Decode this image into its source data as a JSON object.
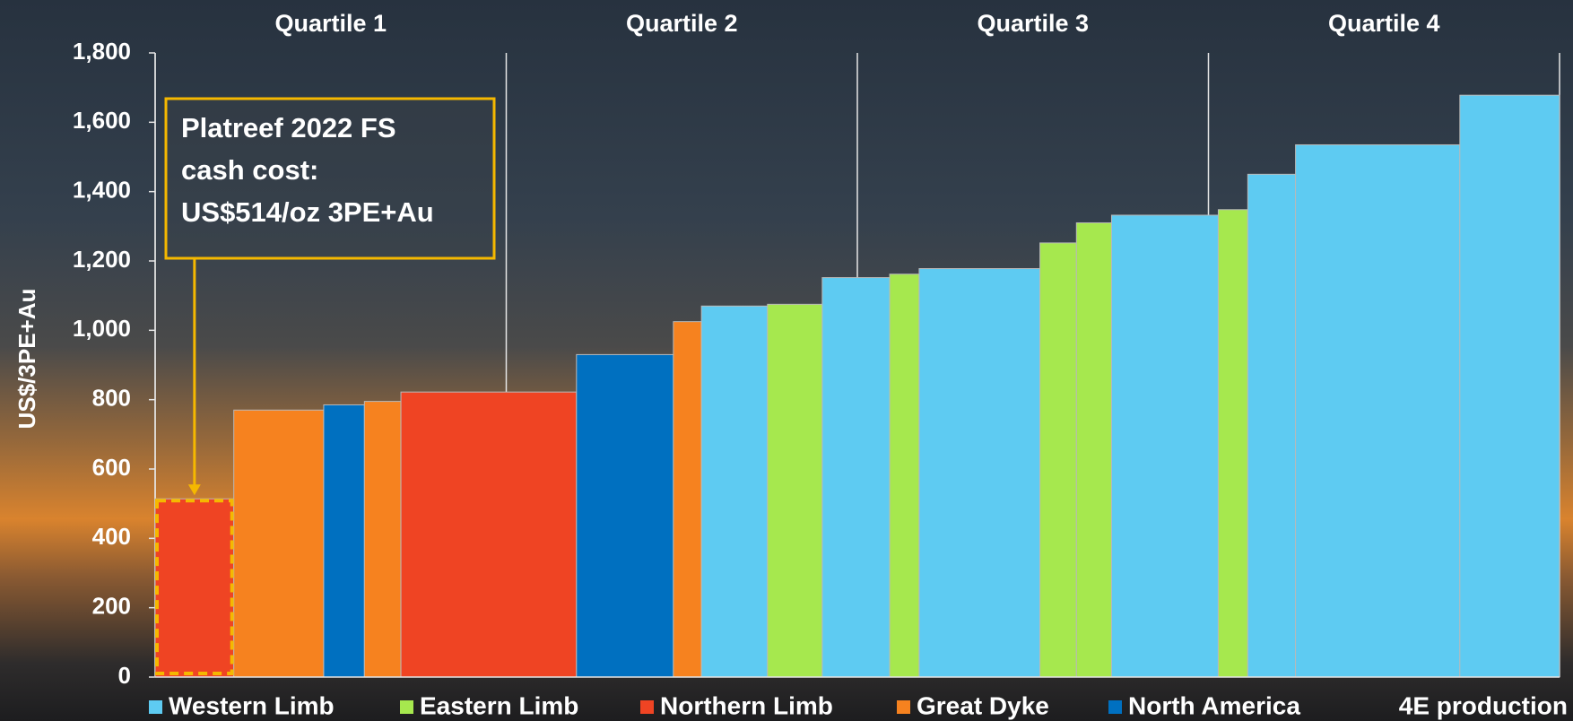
{
  "chart_data": {
    "type": "cost_curve",
    "y_label": "US$/3PE+Au",
    "x_label": "4E production",
    "ylim": [
      0,
      1800
    ],
    "yticks": [
      0,
      200,
      400,
      600,
      800,
      {
        "value": 1000,
        "label": "1,000"
      },
      {
        "value": 1200,
        "label": "1,200"
      },
      {
        "value": 1400,
        "label": "1,400"
      },
      {
        "value": 1600,
        "label": "1,600"
      },
      {
        "value": 1800,
        "label": "1,800"
      }
    ],
    "xlim": [
      0,
      100
    ],
    "quartiles": {
      "labels": [
        "Quartile 1",
        "Quartile 2",
        "Quartile 3",
        "Quartile 4"
      ],
      "bounds": [
        0,
        25,
        50,
        75,
        100
      ]
    },
    "series": [
      {
        "name": "Western Limb",
        "color": "#5ecbf2"
      },
      {
        "name": "Eastern Limb",
        "color": "#a6e84e"
      },
      {
        "name": "Northern Limb",
        "color": "#ef4423"
      },
      {
        "name": "Great Dyke",
        "color": "#f6821f"
      },
      {
        "name": "North America",
        "color": "#0070c0"
      }
    ],
    "bars": [
      {
        "series": 2,
        "width": 5.6,
        "value": 514
      },
      {
        "series": 3,
        "width": 6.4,
        "value": 770
      },
      {
        "series": 4,
        "width": 2.9,
        "value": 785
      },
      {
        "series": 3,
        "width": 2.6,
        "value": 795
      },
      {
        "series": 2,
        "width": 12.5,
        "value": 822
      },
      {
        "series": 4,
        "width": 6.9,
        "value": 930
      },
      {
        "series": 3,
        "width": 2.0,
        "value": 1025
      },
      {
        "series": 0,
        "width": 4.7,
        "value": 1070
      },
      {
        "series": 1,
        "width": 3.9,
        "value": 1075
      },
      {
        "series": 0,
        "width": 4.8,
        "value": 1152
      },
      {
        "series": 1,
        "width": 2.1,
        "value": 1162
      },
      {
        "series": 0,
        "width": 8.6,
        "value": 1178
      },
      {
        "series": 1,
        "width": 2.6,
        "value": 1252
      },
      {
        "series": 1,
        "width": 2.5,
        "value": 1310
      },
      {
        "series": 0,
        "width": 7.6,
        "value": 1332
      },
      {
        "series": 1,
        "width": 2.1,
        "value": 1348
      },
      {
        "series": 0,
        "width": 3.4,
        "value": 1450
      },
      {
        "series": 0,
        "width": 11.7,
        "value": 1535
      },
      {
        "series": 0,
        "width": 7.1,
        "value": 1678
      }
    ],
    "annotation": {
      "lines": [
        "Platreef 2022 FS",
        "cash cost:",
        "US$514/oz 3PE+Au"
      ],
      "target_bar": 0,
      "color": "#f5b800"
    }
  }
}
